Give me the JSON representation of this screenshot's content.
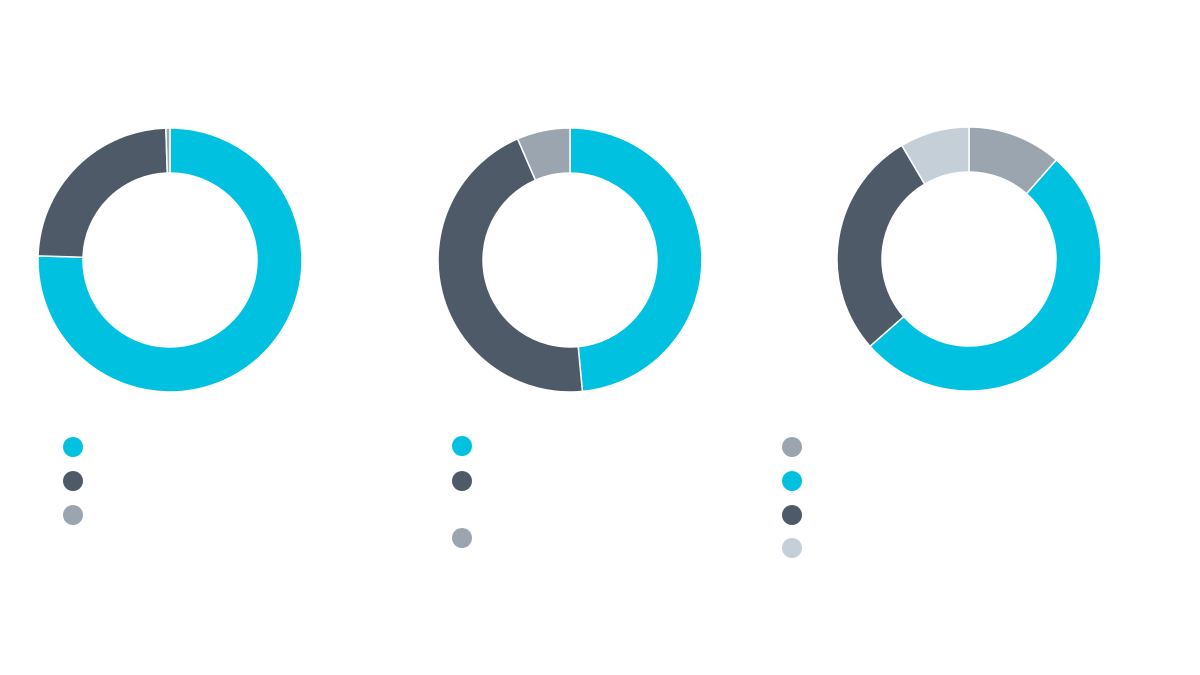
{
  "colors": {
    "cyan": "#00c2e0",
    "slate": "#4f5a68",
    "gray": "#9ba5af",
    "light_gray": "#c5cfd8"
  },
  "chart_data": [
    {
      "type": "pie",
      "donut": true,
      "title": "",
      "slices": [
        {
          "label": "",
          "value": 75.5,
          "color": "#00c2e0"
        },
        {
          "label": "",
          "value": 24.0,
          "color": "#4f5a68"
        },
        {
          "label": "",
          "value": 0.5,
          "color": "#9ba5af"
        }
      ],
      "start_angle_deg": 0,
      "direction": "clockwise",
      "legend": [
        {
          "label": "",
          "color": "#00c2e0"
        },
        {
          "label": "",
          "color": "#4f5a68"
        },
        {
          "label": "",
          "color": "#9ba5af"
        }
      ],
      "legend_position": "bottom-left"
    },
    {
      "type": "pie",
      "donut": true,
      "title": "",
      "slices": [
        {
          "label": "",
          "value": 48.5,
          "color": "#00c2e0"
        },
        {
          "label": "",
          "value": 45.0,
          "color": "#4f5a68"
        },
        {
          "label": "",
          "value": 6.5,
          "color": "#9ba5af"
        }
      ],
      "start_angle_deg": 0,
      "direction": "clockwise",
      "legend": [
        {
          "label": "",
          "color": "#00c2e0"
        },
        {
          "label": "",
          "color": "#4f5a68"
        },
        {
          "label": "",
          "color": "#9ba5af"
        }
      ],
      "legend_position": "bottom-left"
    },
    {
      "type": "pie",
      "donut": true,
      "title": "",
      "slices": [
        {
          "label": "",
          "value": 11.5,
          "color": "#9ba5af"
        },
        {
          "label": "",
          "value": 52.0,
          "color": "#00c2e0"
        },
        {
          "label": "",
          "value": 28.0,
          "color": "#4f5a68"
        },
        {
          "label": "",
          "value": 8.5,
          "color": "#c5cfd8"
        }
      ],
      "start_angle_deg": 0,
      "direction": "clockwise",
      "legend": [
        {
          "label": "",
          "color": "#9ba5af"
        },
        {
          "label": "",
          "color": "#00c2e0"
        },
        {
          "label": "",
          "color": "#4f5a68"
        },
        {
          "label": "",
          "color": "#c5cfd8"
        }
      ],
      "legend_position": "bottom-left"
    }
  ]
}
